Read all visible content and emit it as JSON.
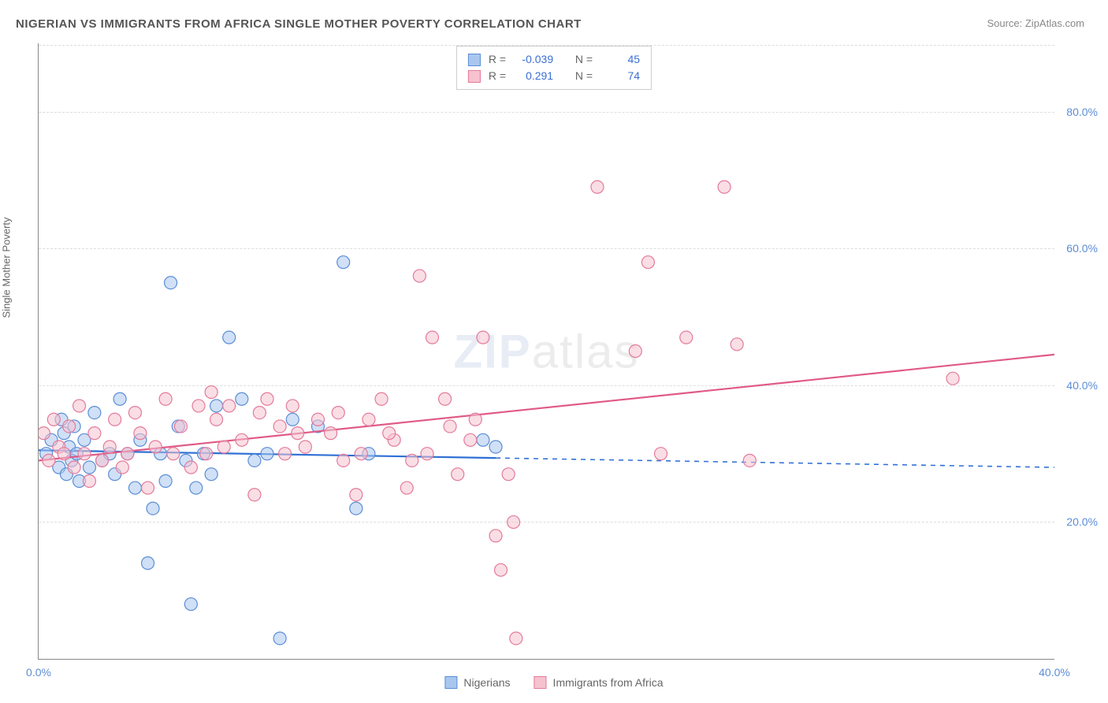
{
  "title": "NIGERIAN VS IMMIGRANTS FROM AFRICA SINGLE MOTHER POVERTY CORRELATION CHART",
  "source_label": "Source: ZipAtlas.com",
  "y_axis_label": "Single Mother Poverty",
  "watermark_a": "ZIP",
  "watermark_b": "atlas",
  "chart": {
    "type": "scatter",
    "background_color": "#ffffff",
    "grid_color": "#dddddd",
    "axis_color": "#888888",
    "tick_color": "#5b8dd6",
    "xlim": [
      0,
      40
    ],
    "ylim": [
      0,
      90
    ],
    "x_ticks": [
      0.0,
      40.0
    ],
    "x_tick_labels": [
      "0.0%",
      "40.0%"
    ],
    "y_ticks": [
      20.0,
      40.0,
      60.0,
      80.0
    ],
    "y_tick_labels": [
      "20.0%",
      "40.0%",
      "60.0%",
      "80.0%"
    ],
    "marker_radius": 8,
    "marker_opacity": 0.55,
    "line_width": 2.2,
    "series": [
      {
        "id": "nigerians",
        "label": "Nigerians",
        "fill_color": "#a9c7ee",
        "stroke_color": "#5b8dd6",
        "line_color": "#2e6fd4",
        "R": "-0.039",
        "N": "45",
        "trend": {
          "x1": 0,
          "y1": 30.5,
          "x2": 40,
          "y2": 28.0,
          "solid_until_x": 18
        },
        "points": [
          [
            0.3,
            30
          ],
          [
            0.5,
            32
          ],
          [
            0.8,
            28
          ],
          [
            0.9,
            35
          ],
          [
            1.0,
            33
          ],
          [
            1.1,
            27
          ],
          [
            1.2,
            31
          ],
          [
            1.3,
            29
          ],
          [
            1.4,
            34
          ],
          [
            1.5,
            30
          ],
          [
            1.6,
            26
          ],
          [
            1.8,
            32
          ],
          [
            2.0,
            28
          ],
          [
            2.2,
            36
          ],
          [
            2.5,
            29
          ],
          [
            2.8,
            30
          ],
          [
            3.0,
            27
          ],
          [
            3.2,
            38
          ],
          [
            3.5,
            30
          ],
          [
            3.8,
            25
          ],
          [
            4.0,
            32
          ],
          [
            4.3,
            14
          ],
          [
            4.5,
            22
          ],
          [
            4.8,
            30
          ],
          [
            5.0,
            26
          ],
          [
            5.2,
            55
          ],
          [
            5.5,
            34
          ],
          [
            5.8,
            29
          ],
          [
            6.0,
            8
          ],
          [
            6.2,
            25
          ],
          [
            6.5,
            30
          ],
          [
            6.8,
            27
          ],
          [
            7.0,
            37
          ],
          [
            7.5,
            47
          ],
          [
            8.0,
            38
          ],
          [
            8.5,
            29
          ],
          [
            9.0,
            30
          ],
          [
            9.5,
            3
          ],
          [
            10.0,
            35
          ],
          [
            11.0,
            34
          ],
          [
            12.0,
            58
          ],
          [
            12.5,
            22
          ],
          [
            13.0,
            30
          ],
          [
            17.5,
            32
          ],
          [
            18.0,
            31
          ]
        ]
      },
      {
        "id": "immigrants",
        "label": "Immigrants from Africa",
        "fill_color": "#f6c2d0",
        "stroke_color": "#e47a9a",
        "line_color": "#e05a87",
        "R": "0.291",
        "N": "74",
        "trend": {
          "x1": 0,
          "y1": 29.0,
          "x2": 40,
          "y2": 44.5,
          "solid_until_x": 40
        },
        "points": [
          [
            0.2,
            33
          ],
          [
            0.4,
            29
          ],
          [
            0.6,
            35
          ],
          [
            0.8,
            31
          ],
          [
            1.0,
            30
          ],
          [
            1.2,
            34
          ],
          [
            1.4,
            28
          ],
          [
            1.6,
            37
          ],
          [
            1.8,
            30
          ],
          [
            2.0,
            26
          ],
          [
            2.2,
            33
          ],
          [
            2.5,
            29
          ],
          [
            2.8,
            31
          ],
          [
            3.0,
            35
          ],
          [
            3.3,
            28
          ],
          [
            3.5,
            30
          ],
          [
            3.8,
            36
          ],
          [
            4.0,
            33
          ],
          [
            4.3,
            25
          ],
          [
            4.6,
            31
          ],
          [
            5.0,
            38
          ],
          [
            5.3,
            30
          ],
          [
            5.6,
            34
          ],
          [
            6.0,
            28
          ],
          [
            6.3,
            37
          ],
          [
            6.6,
            30
          ],
          [
            7.0,
            35
          ],
          [
            7.5,
            37
          ],
          [
            8.0,
            32
          ],
          [
            8.5,
            24
          ],
          [
            9.0,
            38
          ],
          [
            9.5,
            34
          ],
          [
            10.0,
            37
          ],
          [
            10.5,
            31
          ],
          [
            11.0,
            35
          ],
          [
            11.5,
            33
          ],
          [
            12.0,
            29
          ],
          [
            12.5,
            24
          ],
          [
            13.0,
            35
          ],
          [
            13.5,
            38
          ],
          [
            14.0,
            32
          ],
          [
            14.5,
            25
          ],
          [
            15.0,
            56
          ],
          [
            15.3,
            30
          ],
          [
            15.5,
            47
          ],
          [
            16.0,
            38
          ],
          [
            16.5,
            27
          ],
          [
            17.0,
            32
          ],
          [
            17.5,
            47
          ],
          [
            18.0,
            18
          ],
          [
            18.2,
            13
          ],
          [
            18.5,
            27
          ],
          [
            18.7,
            20
          ],
          [
            18.8,
            3
          ],
          [
            22.0,
            69
          ],
          [
            23.5,
            45
          ],
          [
            24.0,
            58
          ],
          [
            24.5,
            30
          ],
          [
            25.5,
            47
          ],
          [
            27.0,
            69
          ],
          [
            27.5,
            46
          ],
          [
            28.0,
            29
          ],
          [
            36.0,
            41
          ],
          [
            6.8,
            39
          ],
          [
            7.3,
            31
          ],
          [
            8.7,
            36
          ],
          [
            9.7,
            30
          ],
          [
            10.2,
            33
          ],
          [
            11.8,
            36
          ],
          [
            12.7,
            30
          ],
          [
            13.8,
            33
          ],
          [
            14.7,
            29
          ],
          [
            16.2,
            34
          ],
          [
            17.2,
            35
          ]
        ]
      }
    ]
  },
  "stats_box": {
    "r_label": "R =",
    "n_label": "N ="
  }
}
